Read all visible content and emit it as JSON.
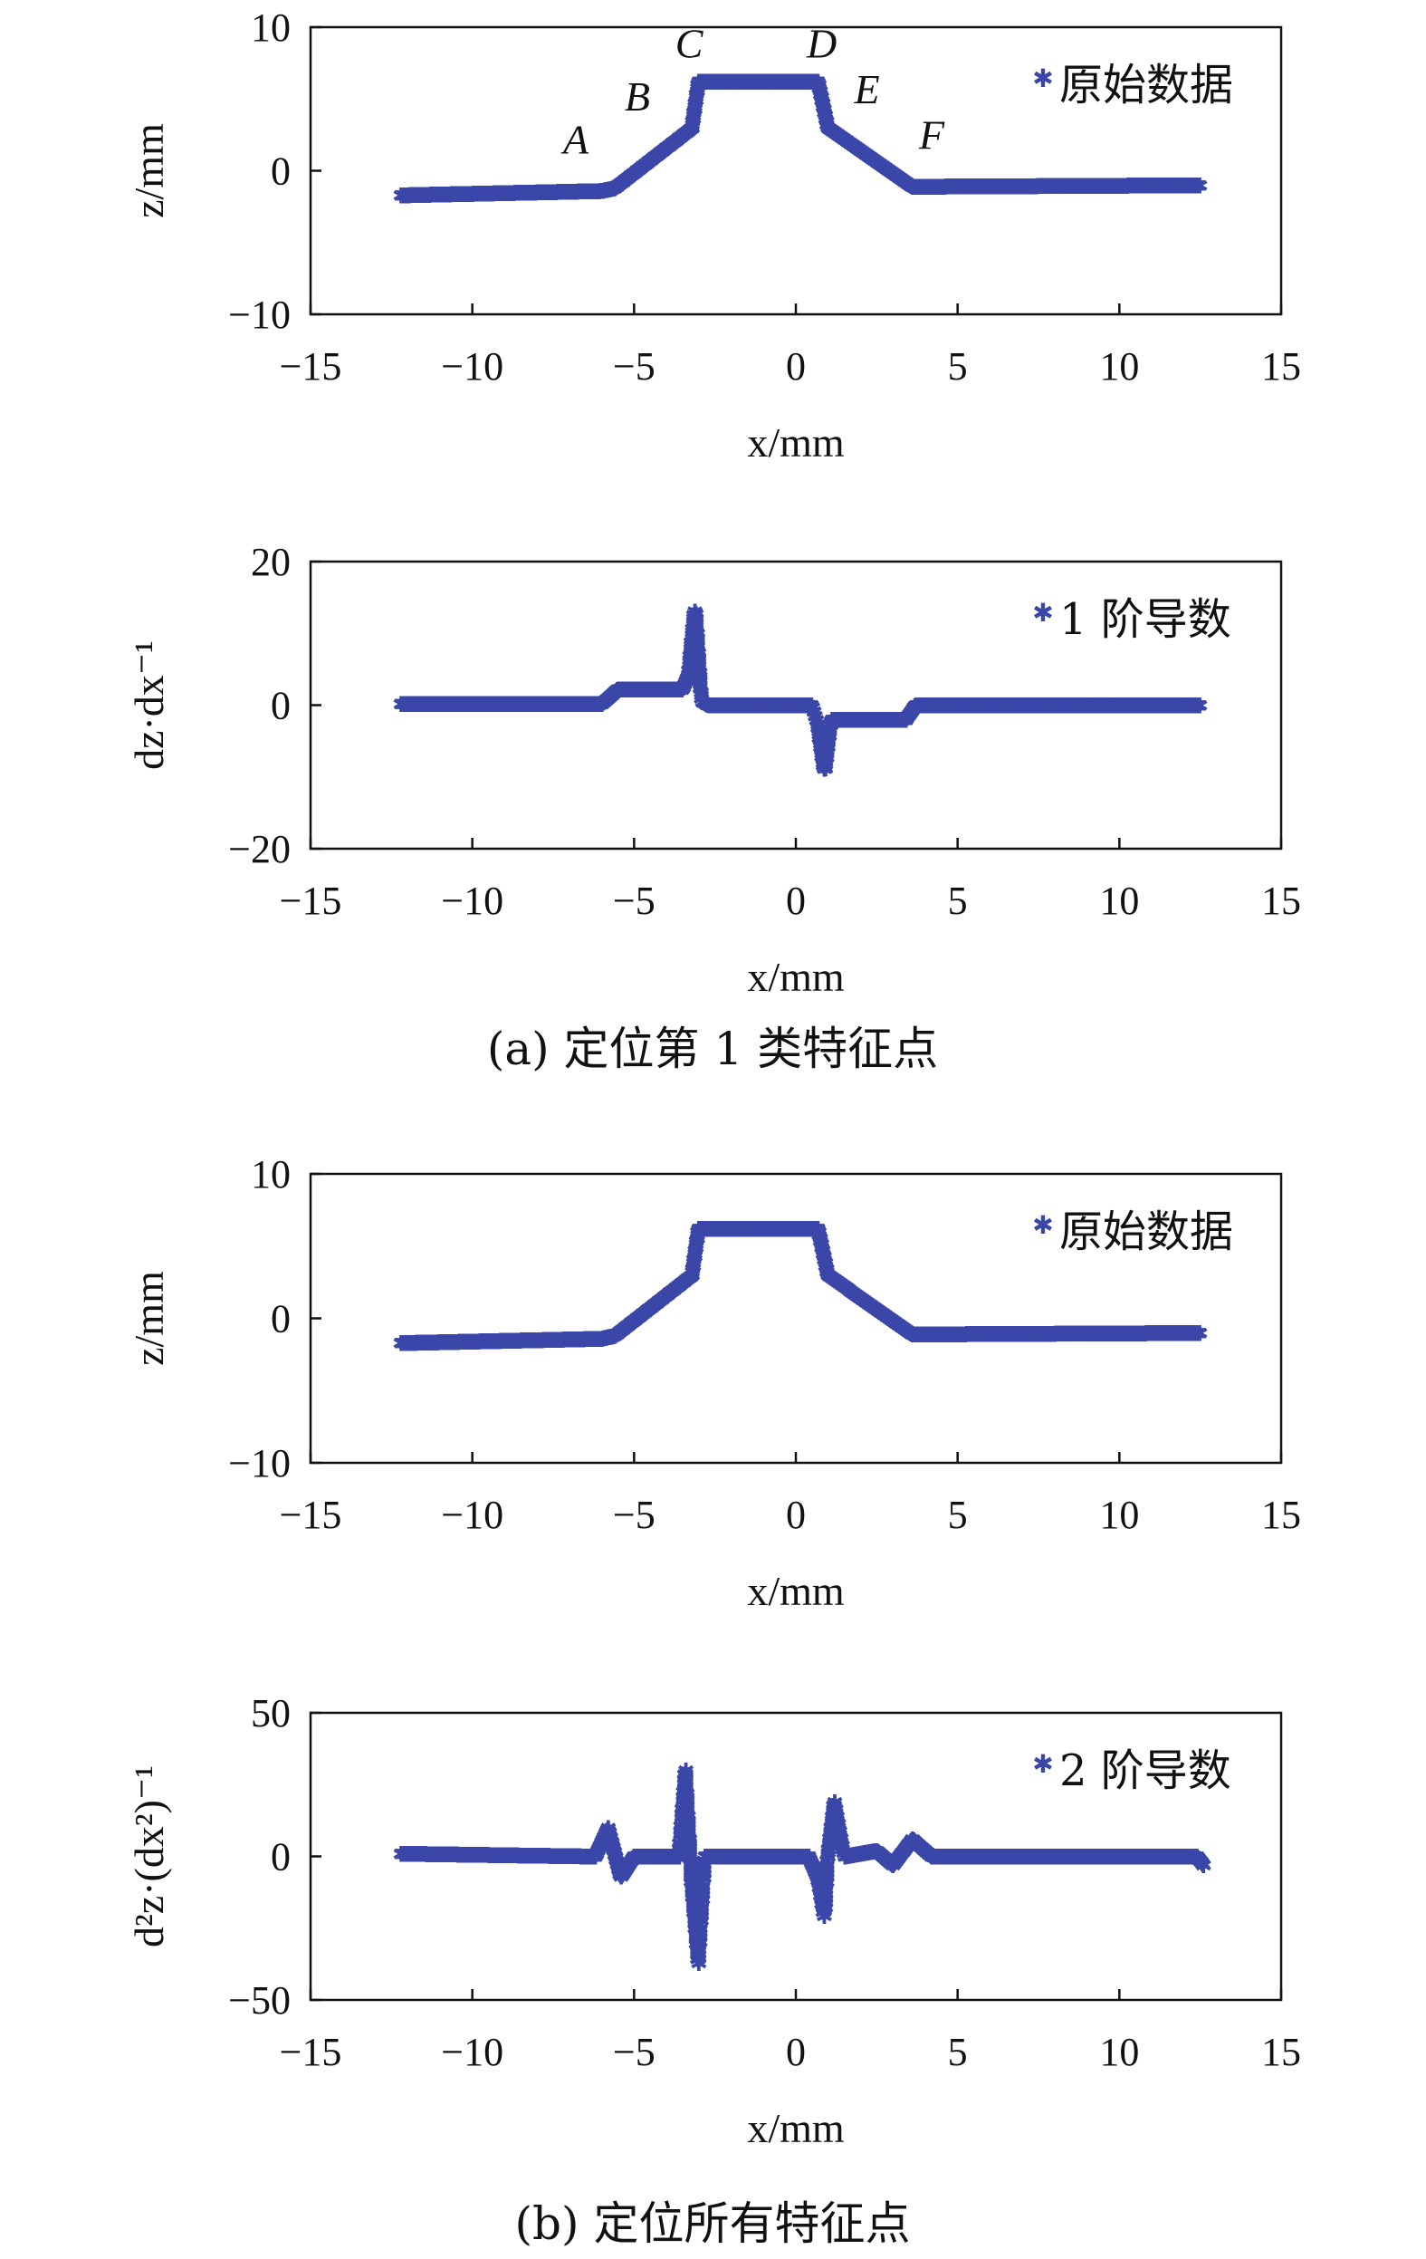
{
  "captions": {
    "a": "(a) 定位第 1 类特征点",
    "b": "(b) 定位所有特征点"
  },
  "colors": {
    "marker": "#3a46a8"
  },
  "chart_data": [
    {
      "id": "a1",
      "type": "scatter",
      "ylabel": "z/mm",
      "xlabel": "x/mm",
      "xlim": [
        -15,
        15
      ],
      "ylim": [
        -10,
        10
      ],
      "xticks": [
        "−15",
        "−10",
        "−5",
        "0",
        "5",
        "10",
        "15"
      ],
      "yticks": [
        "10",
        "0",
        "−10"
      ],
      "legend": "原始数据",
      "legend_position": "top-right",
      "point_labels": [
        {
          "text": "A",
          "x": -6.8,
          "y": 1.2
        },
        {
          "text": "B",
          "x": -4.9,
          "y": 4.2
        },
        {
          "text": "C",
          "x": -3.3,
          "y": 7.9
        },
        {
          "text": "D",
          "x": 0.8,
          "y": 7.9
        },
        {
          "text": "E",
          "x": 2.2,
          "y": 4.7
        },
        {
          "text": "F",
          "x": 4.2,
          "y": 1.5
        }
      ],
      "profile": [
        [
          -12.2,
          -1.7
        ],
        [
          -6.0,
          -1.4
        ],
        [
          -5.6,
          -1.2
        ],
        [
          -3.2,
          3.0
        ],
        [
          -3.0,
          6.2
        ],
        [
          0.7,
          6.2
        ],
        [
          1.0,
          3.0
        ],
        [
          3.6,
          -1.1
        ],
        [
          12.5,
          -1.0
        ]
      ]
    },
    {
      "id": "a2",
      "type": "scatter",
      "ylabel": "dz·dx⁻¹",
      "xlabel": "x/mm",
      "xlim": [
        -15,
        15
      ],
      "ylim": [
        -20,
        20
      ],
      "xticks": [
        "−15",
        "−10",
        "−5",
        "0",
        "5",
        "10",
        "15"
      ],
      "yticks": [
        "20",
        "0",
        "−20"
      ],
      "legend": "1 阶导数",
      "legend_position": "top-right",
      "profile": [
        [
          -12.2,
          0.2
        ],
        [
          -6.0,
          0.2
        ],
        [
          -5.5,
          2.2
        ],
        [
          -3.5,
          2.2
        ],
        [
          -3.3,
          4.5
        ],
        [
          -3.1,
          14.0
        ],
        [
          -2.9,
          0.5
        ],
        [
          -2.7,
          0.0
        ],
        [
          0.5,
          0.0
        ],
        [
          0.7,
          -3.0
        ],
        [
          0.9,
          -9.5
        ],
        [
          1.1,
          -2.0
        ],
        [
          3.4,
          -2.0
        ],
        [
          3.7,
          0.0
        ],
        [
          12.5,
          0.0
        ]
      ]
    },
    {
      "id": "b1",
      "type": "scatter",
      "ylabel": "z/mm",
      "xlabel": "x/mm",
      "xlim": [
        -15,
        15
      ],
      "ylim": [
        -10,
        10
      ],
      "xticks": [
        "−15",
        "−10",
        "−5",
        "0",
        "5",
        "10",
        "15"
      ],
      "yticks": [
        "10",
        "0",
        "−10"
      ],
      "legend": "原始数据",
      "legend_position": "top-right",
      "profile": [
        [
          -12.2,
          -1.7
        ],
        [
          -6.0,
          -1.4
        ],
        [
          -5.6,
          -1.2
        ],
        [
          -3.2,
          3.0
        ],
        [
          -3.0,
          6.2
        ],
        [
          0.7,
          6.2
        ],
        [
          1.0,
          3.0
        ],
        [
          3.6,
          -1.1
        ],
        [
          12.5,
          -1.0
        ]
      ]
    },
    {
      "id": "b2",
      "type": "scatter",
      "ylabel": "d²z·(dx²)⁻¹",
      "xlabel": "x/mm",
      "xlim": [
        -15,
        15
      ],
      "ylim": [
        -50,
        50
      ],
      "xticks": [
        "−15",
        "−10",
        "−5",
        "0",
        "5",
        "10",
        "15"
      ],
      "yticks": [
        "50",
        "0",
        "−50"
      ],
      "legend": "2 阶导数",
      "legend_position": "top-right",
      "profile": [
        [
          -12.2,
          1.0
        ],
        [
          -6.2,
          0.0
        ],
        [
          -5.8,
          10.0
        ],
        [
          -5.4,
          -7.0
        ],
        [
          -5.0,
          0.0
        ],
        [
          -3.6,
          0.0
        ],
        [
          -3.4,
          30.0
        ],
        [
          -3.2,
          -10.0
        ],
        [
          -3.0,
          -37.0
        ],
        [
          -2.8,
          0.0
        ],
        [
          0.4,
          0.0
        ],
        [
          0.7,
          -8.0
        ],
        [
          0.9,
          -22.0
        ],
        [
          1.0,
          0.0
        ],
        [
          1.2,
          19.0
        ],
        [
          1.5,
          0.0
        ],
        [
          2.5,
          2.0
        ],
        [
          3.0,
          -3.0
        ],
        [
          3.6,
          6.0
        ],
        [
          4.2,
          0.0
        ],
        [
          12.4,
          0.0
        ],
        [
          12.6,
          -3.0
        ]
      ]
    }
  ]
}
